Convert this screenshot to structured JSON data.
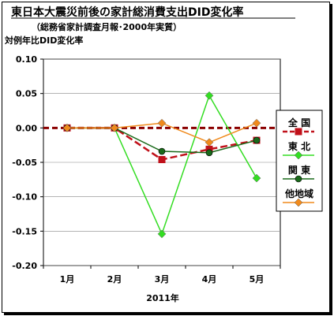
{
  "chart_data": {
    "type": "line",
    "title": "東日本大震災前後の家計総消費支出DID変化率",
    "subtitle": "（総務省家計調査月報･2000年実質）",
    "ylabel": "対例年比DID変化率",
    "xlabel": "2011年",
    "categories": [
      "1月",
      "2月",
      "3月",
      "4月",
      "5月"
    ],
    "ylim": [
      -0.2,
      0.1
    ],
    "yticks": [
      "0.10",
      "0.05",
      "0.00",
      "-0.05",
      "-0.10",
      "-0.15",
      "-0.20"
    ],
    "ytick_values": [
      0.1,
      0.05,
      0.0,
      -0.05,
      -0.1,
      -0.15,
      -0.2
    ],
    "legend_position": "right",
    "series": [
      {
        "name": "全 国",
        "values": [
          0.0,
          0.0,
          -0.046,
          -0.031,
          -0.018
        ],
        "color": "#c0111a",
        "marker": "square",
        "dash": "dashed"
      },
      {
        "name": "東 北",
        "values": [
          0.0,
          0.0,
          -0.154,
          0.047,
          -0.073
        ],
        "color": "#33dd22",
        "marker": "diamond",
        "dash": "solid"
      },
      {
        "name": "関 東",
        "values": [
          0.0,
          0.0,
          -0.034,
          -0.036,
          -0.018
        ],
        "color": "#1a6a1a",
        "marker": "circle",
        "dash": "solid"
      },
      {
        "name": "他地域",
        "values": [
          0.0,
          0.0,
          0.007,
          -0.021,
          0.007
        ],
        "color": "#f08a1c",
        "marker": "diamond",
        "dash": "solid"
      }
    ]
  }
}
